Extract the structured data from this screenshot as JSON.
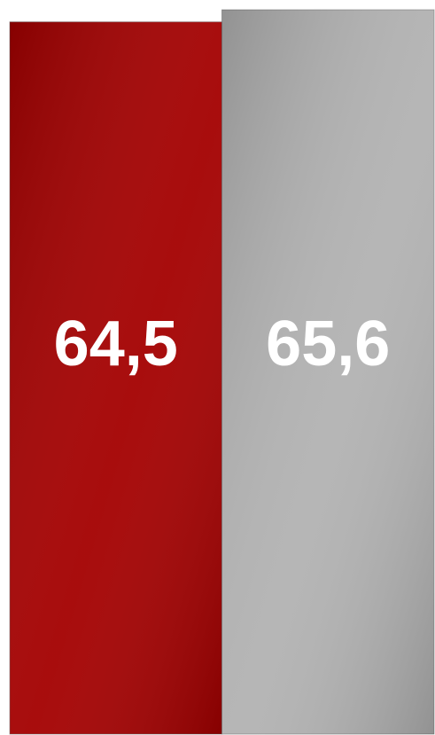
{
  "chart_data": {
    "type": "bar",
    "values": [
      64.5,
      65.6
    ],
    "value_labels": [
      "64,5",
      "65,6"
    ],
    "colors": [
      "#a40000",
      "#b2b2b2"
    ]
  }
}
